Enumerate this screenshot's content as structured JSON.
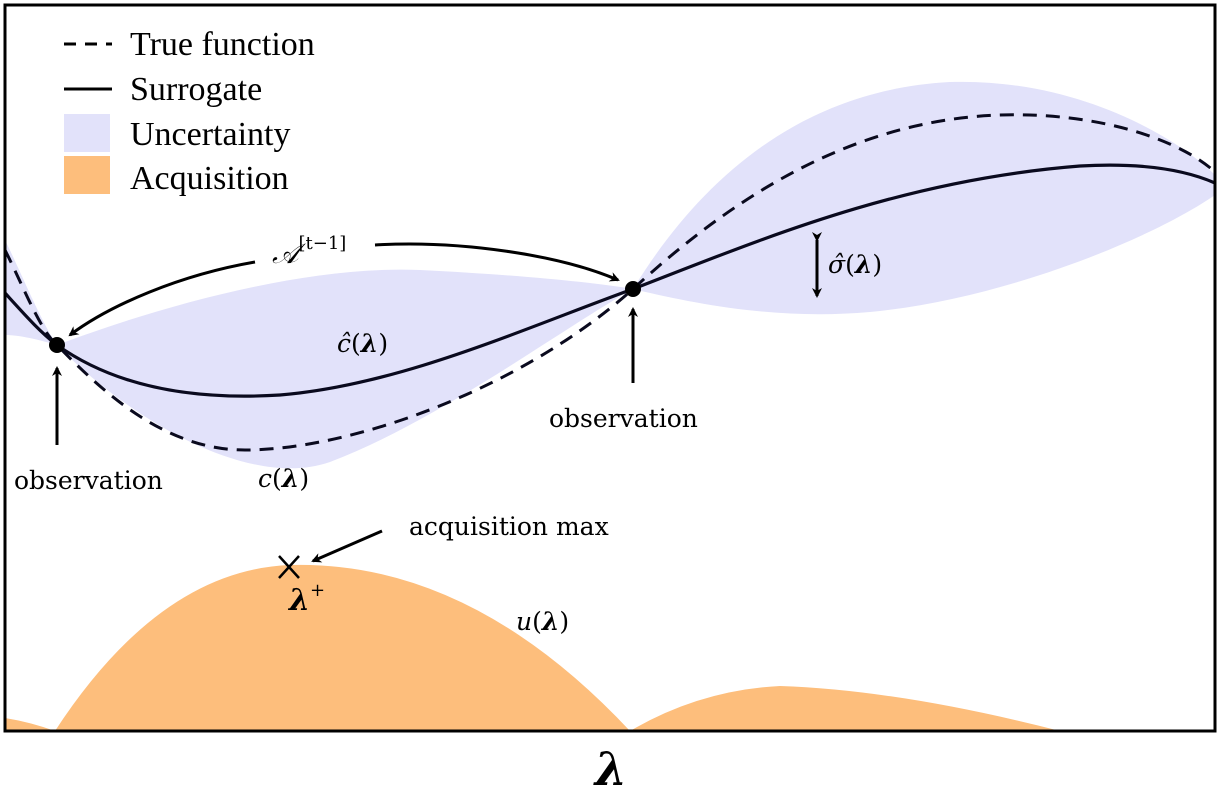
{
  "legend": {
    "true_function": "True function",
    "surrogate": "Surrogate",
    "uncertainty": "Uncertainty",
    "acquisition": "Acquisition"
  },
  "colors": {
    "uncertainty": "#e2e2fa",
    "acquisition": "#fdbe7c",
    "curve": "#0a0a1e",
    "frame": "#000000"
  },
  "labels": {
    "history_base": "𝒜",
    "history_sup": "[t−1]",
    "c_hat": "ĉ",
    "c": "c",
    "sigma_hat": "σ̂",
    "u": "u",
    "lambda": "λ",
    "lambda_plus_sup": "+",
    "observation_left": "observation",
    "observation_right": "observation",
    "acquisition_max": "acquisition max",
    "x_axis": "λ"
  }
}
